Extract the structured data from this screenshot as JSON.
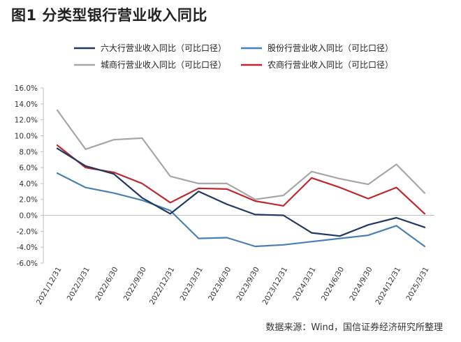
{
  "header": {
    "title": "图1  分类型银行营业收入同比"
  },
  "source": "数据来源：Wind，国信证券经济研究所整理",
  "chart_data": {
    "type": "line",
    "categories": [
      "2021/12/31",
      "2022/3/31",
      "2022/6/30",
      "2022/9/30",
      "2022/12/31",
      "2023/3/31",
      "2023/6/30",
      "2023/9/30",
      "2023/12/31",
      "2024/3/31",
      "2024/6/30",
      "2024/9/30",
      "2024/12/31",
      "2025/3/31"
    ],
    "y_ticks": [
      "16.0%",
      "14.0%",
      "12.0%",
      "10.0%",
      "8.0%",
      "6.0%",
      "4.0%",
      "2.0%",
      "0.0%",
      "-2.0%",
      "-4.0%",
      "-6.0%"
    ],
    "ylim": [
      -6,
      16
    ],
    "legend_position": "top",
    "series": [
      {
        "name": "六大行营业收入同比（可比口径）",
        "color": "#1f3864",
        "values": [
          8.4,
          6.2,
          5.2,
          2.2,
          0.2,
          3.0,
          1.4,
          0.1,
          0.0,
          -2.2,
          -2.6,
          -1.2,
          -0.3,
          -1.5
        ]
      },
      {
        "name": "股份行营业收入同比（可比口径）",
        "color": "#4a7fb5",
        "values": [
          5.3,
          3.5,
          2.8,
          1.9,
          0.6,
          -2.9,
          -2.8,
          -3.9,
          -3.7,
          -3.3,
          -2.9,
          -2.5,
          -1.3,
          -3.9
        ]
      },
      {
        "name": "城商行营业收入同比（可比口径）",
        "color": "#a6a6a6",
        "values": [
          13.2,
          8.3,
          9.5,
          9.7,
          4.9,
          4.0,
          4.0,
          2.0,
          2.5,
          5.5,
          4.6,
          3.9,
          6.4,
          2.8
        ]
      },
      {
        "name": "农商行营业收入同比（可比口径）",
        "color": "#c0272d",
        "values": [
          8.8,
          6.0,
          5.4,
          4.0,
          1.6,
          3.4,
          3.3,
          1.8,
          1.2,
          4.7,
          3.5,
          2.1,
          3.5,
          0.2
        ]
      }
    ]
  }
}
